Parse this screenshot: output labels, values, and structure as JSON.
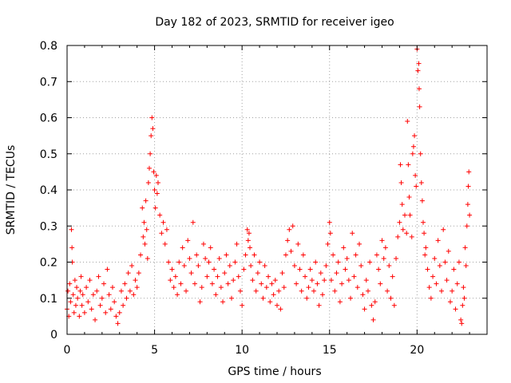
{
  "chart_data": {
    "type": "scatter",
    "title": "Day 182 of 2023, SRMTID for receiver igeo",
    "xlabel": "GPS time / hours",
    "ylabel": "SRMTID / TECUs",
    "xlim": [
      0,
      24
    ],
    "ylim": [
      0,
      0.8
    ],
    "xticks": [
      0,
      5,
      10,
      15,
      20
    ],
    "xtick_labels": [
      "0",
      "5",
      "10",
      "15",
      "20"
    ],
    "yticks": [
      0,
      0.1,
      0.2,
      0.3,
      0.4,
      0.5,
      0.6,
      0.7,
      0.8
    ],
    "ytick_labels": [
      "0",
      "0.1",
      "0.2",
      "0.3",
      "0.4",
      "0.5",
      "0.6",
      "0.7",
      "0.8"
    ],
    "grid": true,
    "marker": "+",
    "marker_color": "#ff0000",
    "series": [
      {
        "name": "SRMTID",
        "points": [
          [
            0.0,
            0.07
          ],
          [
            0.05,
            0.12
          ],
          [
            0.1,
            0.05
          ],
          [
            0.15,
            0.14
          ],
          [
            0.2,
            0.09
          ],
          [
            0.25,
            0.29
          ],
          [
            0.28,
            0.24
          ],
          [
            0.3,
            0.2
          ],
          [
            0.35,
            0.11
          ],
          [
            0.4,
            0.06
          ],
          [
            0.45,
            0.15
          ],
          [
            0.5,
            0.08
          ],
          [
            0.55,
            0.13
          ],
          [
            0.6,
            0.1
          ],
          [
            0.7,
            0.05
          ],
          [
            0.75,
            0.12
          ],
          [
            0.8,
            0.16
          ],
          [
            0.85,
            0.08
          ],
          [
            0.9,
            0.11
          ],
          [
            1.0,
            0.06
          ],
          [
            1.1,
            0.13
          ],
          [
            1.2,
            0.09
          ],
          [
            1.3,
            0.15
          ],
          [
            1.4,
            0.07
          ],
          [
            1.5,
            0.11
          ],
          [
            1.6,
            0.04
          ],
          [
            1.7,
            0.12
          ],
          [
            1.8,
            0.16
          ],
          [
            1.9,
            0.08
          ],
          [
            2.0,
            0.1
          ],
          [
            2.1,
            0.14
          ],
          [
            2.2,
            0.06
          ],
          [
            2.3,
            0.18
          ],
          [
            2.4,
            0.11
          ],
          [
            2.5,
            0.07
          ],
          [
            2.6,
            0.13
          ],
          [
            2.7,
            0.09
          ],
          [
            2.8,
            0.05
          ],
          [
            2.9,
            0.03
          ],
          [
            3.0,
            0.06
          ],
          [
            3.1,
            0.12
          ],
          [
            3.2,
            0.08
          ],
          [
            3.3,
            0.14
          ],
          [
            3.4,
            0.1
          ],
          [
            3.5,
            0.17
          ],
          [
            3.6,
            0.12
          ],
          [
            3.7,
            0.19
          ],
          [
            3.8,
            0.11
          ],
          [
            3.9,
            0.15
          ],
          [
            4.0,
            0.13
          ],
          [
            4.1,
            0.17
          ],
          [
            4.2,
            0.22
          ],
          [
            4.3,
            0.35
          ],
          [
            4.35,
            0.27
          ],
          [
            4.4,
            0.31
          ],
          [
            4.45,
            0.25
          ],
          [
            4.5,
            0.37
          ],
          [
            4.55,
            0.29
          ],
          [
            4.6,
            0.21
          ],
          [
            4.65,
            0.42
          ],
          [
            4.7,
            0.46
          ],
          [
            4.75,
            0.5
          ],
          [
            4.8,
            0.55
          ],
          [
            4.85,
            0.6
          ],
          [
            4.9,
            0.57
          ],
          [
            4.95,
            0.45
          ],
          [
            5.0,
            0.4
          ],
          [
            5.05,
            0.35
          ],
          [
            5.1,
            0.44
          ],
          [
            5.15,
            0.39
          ],
          [
            5.2,
            0.42
          ],
          [
            5.3,
            0.33
          ],
          [
            5.4,
            0.28
          ],
          [
            5.5,
            0.31
          ],
          [
            5.6,
            0.25
          ],
          [
            5.7,
            0.29
          ],
          [
            5.8,
            0.2
          ],
          [
            5.9,
            0.15
          ],
          [
            6.0,
            0.18
          ],
          [
            6.1,
            0.13
          ],
          [
            6.2,
            0.16
          ],
          [
            6.3,
            0.11
          ],
          [
            6.4,
            0.2
          ],
          [
            6.5,
            0.14
          ],
          [
            6.6,
            0.24
          ],
          [
            6.7,
            0.19
          ],
          [
            6.8,
            0.12
          ],
          [
            6.9,
            0.26
          ],
          [
            7.0,
            0.21
          ],
          [
            7.1,
            0.17
          ],
          [
            7.2,
            0.31
          ],
          [
            7.3,
            0.14
          ],
          [
            7.4,
            0.22
          ],
          [
            7.5,
            0.19
          ],
          [
            7.6,
            0.09
          ],
          [
            7.7,
            0.13
          ],
          [
            7.8,
            0.25
          ],
          [
            7.9,
            0.21
          ],
          [
            8.0,
            0.16
          ],
          [
            8.1,
            0.2
          ],
          [
            8.2,
            0.24
          ],
          [
            8.3,
            0.14
          ],
          [
            8.4,
            0.18
          ],
          [
            8.5,
            0.11
          ],
          [
            8.6,
            0.16
          ],
          [
            8.7,
            0.21
          ],
          [
            8.8,
            0.13
          ],
          [
            8.9,
            0.09
          ],
          [
            9.0,
            0.17
          ],
          [
            9.1,
            0.22
          ],
          [
            9.2,
            0.14
          ],
          [
            9.3,
            0.19
          ],
          [
            9.4,
            0.1
          ],
          [
            9.5,
            0.15
          ],
          [
            9.6,
            0.2
          ],
          [
            9.7,
            0.25
          ],
          [
            9.8,
            0.16
          ],
          [
            9.9,
            0.12
          ],
          [
            10.0,
            0.08
          ],
          [
            10.1,
            0.18
          ],
          [
            10.2,
            0.22
          ],
          [
            10.3,
            0.29
          ],
          [
            10.35,
            0.26
          ],
          [
            10.4,
            0.28
          ],
          [
            10.45,
            0.24
          ],
          [
            10.5,
            0.19
          ],
          [
            10.6,
            0.15
          ],
          [
            10.7,
            0.22
          ],
          [
            10.8,
            0.12
          ],
          [
            10.9,
            0.17
          ],
          [
            11.0,
            0.2
          ],
          [
            11.1,
            0.14
          ],
          [
            11.2,
            0.1
          ],
          [
            11.3,
            0.19
          ],
          [
            11.4,
            0.13
          ],
          [
            11.5,
            0.16
          ],
          [
            11.6,
            0.09
          ],
          [
            11.7,
            0.14
          ],
          [
            11.8,
            0.11
          ],
          [
            11.9,
            0.15
          ],
          [
            12.0,
            0.08
          ],
          [
            12.1,
            0.12
          ],
          [
            12.2,
            0.07
          ],
          [
            12.3,
            0.17
          ],
          [
            12.4,
            0.13
          ],
          [
            12.5,
            0.22
          ],
          [
            12.6,
            0.26
          ],
          [
            12.7,
            0.29
          ],
          [
            12.8,
            0.23
          ],
          [
            12.9,
            0.3
          ],
          [
            13.0,
            0.19
          ],
          [
            13.1,
            0.14
          ],
          [
            13.2,
            0.25
          ],
          [
            13.3,
            0.18
          ],
          [
            13.4,
            0.12
          ],
          [
            13.5,
            0.22
          ],
          [
            13.6,
            0.16
          ],
          [
            13.7,
            0.1
          ],
          [
            13.8,
            0.13
          ],
          [
            13.9,
            0.18
          ],
          [
            14.0,
            0.15
          ],
          [
            14.1,
            0.12
          ],
          [
            14.2,
            0.2
          ],
          [
            14.3,
            0.14
          ],
          [
            14.4,
            0.08
          ],
          [
            14.5,
            0.17
          ],
          [
            14.6,
            0.11
          ],
          [
            14.7,
            0.15
          ],
          [
            14.8,
            0.19
          ],
          [
            14.9,
            0.25
          ],
          [
            15.0,
            0.31
          ],
          [
            15.05,
            0.28
          ],
          [
            15.1,
            0.15
          ],
          [
            15.2,
            0.22
          ],
          [
            15.3,
            0.12
          ],
          [
            15.4,
            0.17
          ],
          [
            15.5,
            0.2
          ],
          [
            15.6,
            0.09
          ],
          [
            15.7,
            0.14
          ],
          [
            15.8,
            0.24
          ],
          [
            15.9,
            0.18
          ],
          [
            16.0,
            0.21
          ],
          [
            16.1,
            0.15
          ],
          [
            16.2,
            0.1
          ],
          [
            16.3,
            0.28
          ],
          [
            16.4,
            0.16
          ],
          [
            16.5,
            0.22
          ],
          [
            16.6,
            0.13
          ],
          [
            16.7,
            0.25
          ],
          [
            16.8,
            0.19
          ],
          [
            16.9,
            0.11
          ],
          [
            17.0,
            0.07
          ],
          [
            17.1,
            0.15
          ],
          [
            17.2,
            0.12
          ],
          [
            17.3,
            0.2
          ],
          [
            17.4,
            0.08
          ],
          [
            17.5,
            0.04
          ],
          [
            17.6,
            0.09
          ],
          [
            17.7,
            0.22
          ],
          [
            17.8,
            0.18
          ],
          [
            17.9,
            0.14
          ],
          [
            18.0,
            0.26
          ],
          [
            18.1,
            0.21
          ],
          [
            18.2,
            0.24
          ],
          [
            18.3,
            0.12
          ],
          [
            18.4,
            0.19
          ],
          [
            18.5,
            0.1
          ],
          [
            18.6,
            0.16
          ],
          [
            18.7,
            0.08
          ],
          [
            18.8,
            0.21
          ],
          [
            18.9,
            0.27
          ],
          [
            19.0,
            0.31
          ],
          [
            19.05,
            0.47
          ],
          [
            19.1,
            0.42
          ],
          [
            19.15,
            0.36
          ],
          [
            19.2,
            0.29
          ],
          [
            19.3,
            0.33
          ],
          [
            19.4,
            0.28
          ],
          [
            19.45,
            0.59
          ],
          [
            19.5,
            0.47
          ],
          [
            19.55,
            0.38
          ],
          [
            19.6,
            0.33
          ],
          [
            19.7,
            0.27
          ],
          [
            19.75,
            0.5
          ],
          [
            19.8,
            0.52
          ],
          [
            19.85,
            0.55
          ],
          [
            19.9,
            0.44
          ],
          [
            19.95,
            0.41
          ],
          [
            20.0,
            0.79
          ],
          [
            20.05,
            0.73
          ],
          [
            20.1,
            0.75
          ],
          [
            20.12,
            0.68
          ],
          [
            20.15,
            0.63
          ],
          [
            20.2,
            0.5
          ],
          [
            20.25,
            0.42
          ],
          [
            20.3,
            0.37
          ],
          [
            20.35,
            0.31
          ],
          [
            20.4,
            0.28
          ],
          [
            20.45,
            0.22
          ],
          [
            20.5,
            0.24
          ],
          [
            20.6,
            0.18
          ],
          [
            20.7,
            0.13
          ],
          [
            20.8,
            0.1
          ],
          [
            20.9,
            0.16
          ],
          [
            21.0,
            0.21
          ],
          [
            21.1,
            0.14
          ],
          [
            21.2,
            0.26
          ],
          [
            21.3,
            0.19
          ],
          [
            21.4,
            0.12
          ],
          [
            21.5,
            0.29
          ],
          [
            21.6,
            0.2
          ],
          [
            21.7,
            0.15
          ],
          [
            21.8,
            0.23
          ],
          [
            21.9,
            0.09
          ],
          [
            22.0,
            0.12
          ],
          [
            22.1,
            0.18
          ],
          [
            22.2,
            0.07
          ],
          [
            22.3,
            0.14
          ],
          [
            22.4,
            0.2
          ],
          [
            22.5,
            0.04
          ],
          [
            22.55,
            0.03
          ],
          [
            22.6,
            0.08
          ],
          [
            22.65,
            0.13
          ],
          [
            22.7,
            0.1
          ],
          [
            22.75,
            0.24
          ],
          [
            22.8,
            0.19
          ],
          [
            22.85,
            0.3
          ],
          [
            22.9,
            0.36
          ],
          [
            22.93,
            0.41
          ],
          [
            22.96,
            0.45
          ],
          [
            23.0,
            0.33
          ]
        ]
      }
    ]
  }
}
